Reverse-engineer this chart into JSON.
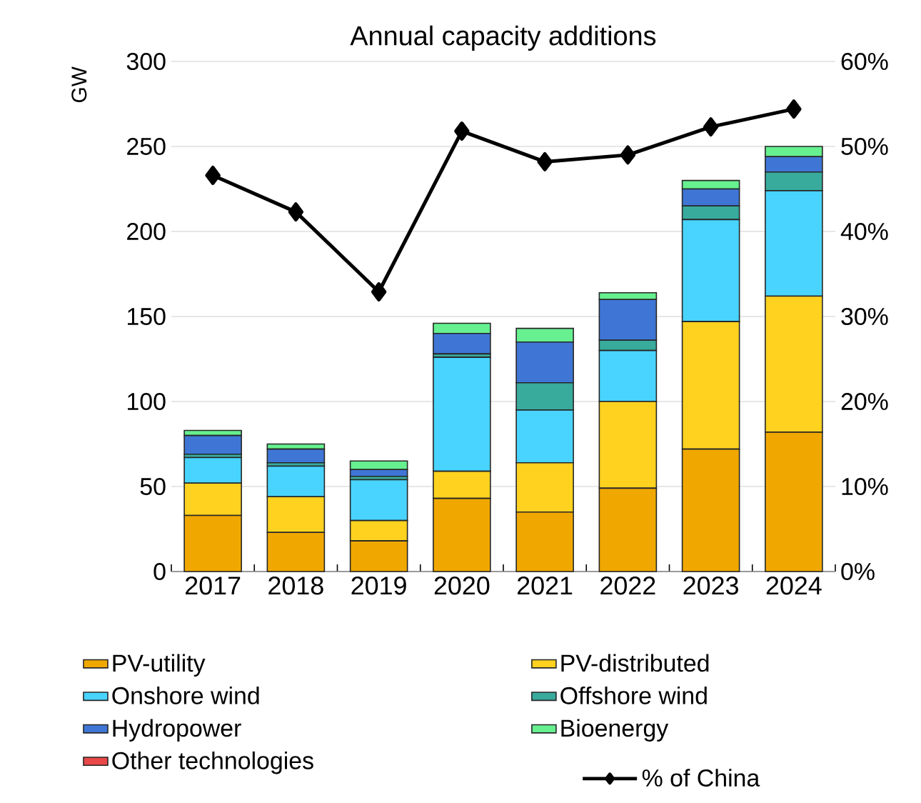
{
  "chart_data": {
    "type": "bar",
    "title": "Annual capacity additions",
    "ylabel": "GW",
    "categories": [
      "2017",
      "2018",
      "2019",
      "2020",
      "2021",
      "2022",
      "2023",
      "2024"
    ],
    "stacked": true,
    "series": [
      {
        "name": "PV-utility",
        "color": "#f0a800",
        "values": [
          33,
          23,
          18,
          43,
          35,
          49,
          72,
          82
        ]
      },
      {
        "name": "PV-distributed",
        "color": "#ffd21f",
        "values": [
          19,
          21,
          12,
          16,
          29,
          51,
          75,
          80
        ]
      },
      {
        "name": "Onshore wind",
        "color": "#48d4ff",
        "values": [
          15,
          18,
          24,
          67,
          31,
          30,
          60,
          62
        ]
      },
      {
        "name": "Offshore wind",
        "color": "#38ab9d",
        "values": [
          2,
          2,
          2,
          2,
          16,
          6,
          8,
          11
        ]
      },
      {
        "name": "Hydropower",
        "color": "#3f76d6",
        "values": [
          11,
          8,
          4,
          12,
          24,
          24,
          10,
          9
        ]
      },
      {
        "name": "Bioenergy",
        "color": "#66f08f",
        "values": [
          3,
          3,
          5,
          6,
          8,
          4,
          5,
          6
        ]
      },
      {
        "name": "Other technologies",
        "color": "#e84848",
        "values": [
          0,
          0,
          0,
          0,
          0,
          0,
          0,
          0
        ]
      },
      {
        "name": "% of China",
        "type": "line",
        "axis": "y2",
        "color": "#000000",
        "marker": "diamond",
        "values": [
          46.6,
          42.3,
          32.9,
          51.8,
          48.2,
          49.0,
          52.3,
          54.4
        ]
      }
    ],
    "ylim": [
      0,
      300
    ],
    "yticks": [
      0,
      50,
      100,
      150,
      200,
      250,
      300
    ],
    "y2lim": [
      0,
      60
    ],
    "y2ticks": [
      {
        "value": 0,
        "label": "0%"
      },
      {
        "value": 10,
        "label": "10%"
      },
      {
        "value": 20,
        "label": "20%"
      },
      {
        "value": 30,
        "label": "30%"
      },
      {
        "value": 40,
        "label": "40%"
      },
      {
        "value": 50,
        "label": "50%"
      },
      {
        "value": 60,
        "label": "60%"
      }
    ],
    "grid": "y",
    "legend": "bottom"
  }
}
